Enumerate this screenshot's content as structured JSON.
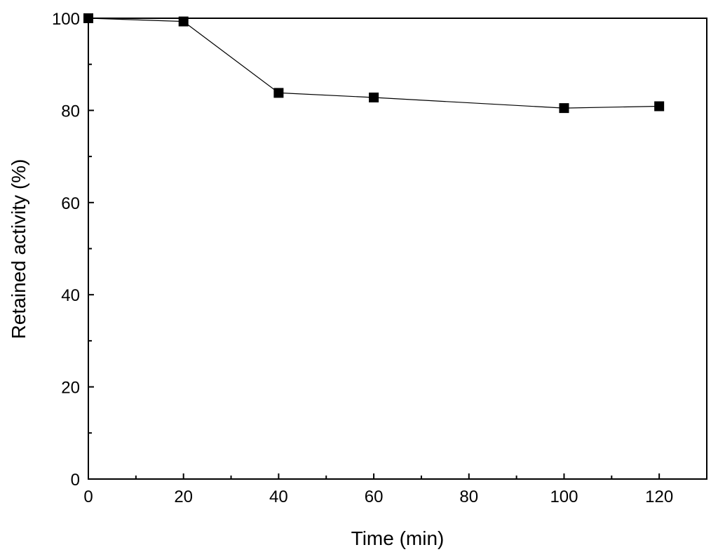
{
  "chart_data": {
    "type": "line",
    "title": "",
    "xlabel": "Time (min)",
    "ylabel": "Retained activity (%)",
    "xlim": [
      0,
      130
    ],
    "ylim": [
      0,
      100
    ],
    "x_ticks": [
      0,
      20,
      40,
      60,
      80,
      100,
      120
    ],
    "y_ticks": [
      0,
      20,
      40,
      60,
      80,
      100
    ],
    "grid": false,
    "legend": "none",
    "marker": "filled-square",
    "series": [
      {
        "x": [
          0,
          20,
          40,
          60,
          100,
          120
        ],
        "y": [
          100,
          99.3,
          83.8,
          82.8,
          80.5,
          80.9
        ],
        "color": "#000000"
      }
    ]
  }
}
